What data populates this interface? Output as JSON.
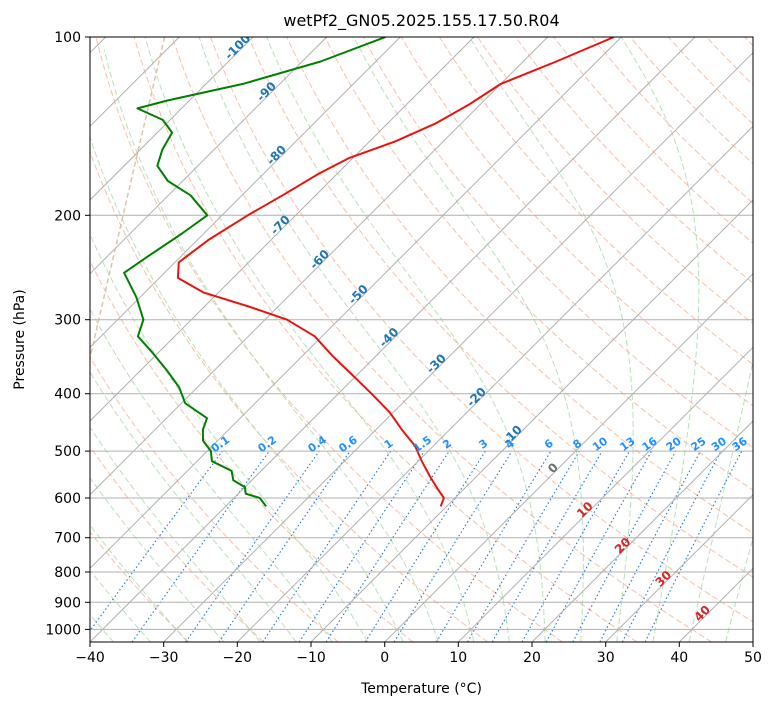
{
  "chart_data": {
    "type": "line",
    "title": "wetPf2_GN05.2025.155.17.50.R04",
    "xlabel": "Temperature (°C)",
    "ylabel": "Pressure (hPa)",
    "xlim": [
      -40,
      50
    ],
    "ylim": [
      1050,
      100
    ],
    "y_scale": "log",
    "skew": true,
    "grid": true,
    "x_ticks": [
      -40,
      -30,
      -20,
      -10,
      0,
      10,
      20,
      30,
      40,
      50
    ],
    "y_ticks": [
      100,
      200,
      300,
      400,
      500,
      600,
      700,
      800,
      900,
      1000
    ],
    "series": [
      {
        "role": "temperature",
        "color": "#e8140f",
        "points": [
          {
            "p": 100,
            "t": -51
          },
          {
            "p": 110,
            "t": -55.5
          },
          {
            "p": 120,
            "t": -60
          },
          {
            "p": 130,
            "t": -61.5
          },
          {
            "p": 140,
            "t": -63.5
          },
          {
            "p": 150,
            "t": -66.5
          },
          {
            "p": 160,
            "t": -70.5
          },
          {
            "p": 170,
            "t": -72.5
          },
          {
            "p": 185,
            "t": -74.5
          },
          {
            "p": 200,
            "t": -76.5
          },
          {
            "p": 220,
            "t": -78.5
          },
          {
            "p": 240,
            "t": -79.5
          },
          {
            "p": 255,
            "t": -77.5
          },
          {
            "p": 270,
            "t": -72
          },
          {
            "p": 285,
            "t": -64
          },
          {
            "p": 300,
            "t": -57
          },
          {
            "p": 320,
            "t": -51
          },
          {
            "p": 345,
            "t": -46
          },
          {
            "p": 370,
            "t": -41
          },
          {
            "p": 400,
            "t": -35.5
          },
          {
            "p": 430,
            "t": -30.5
          },
          {
            "p": 460,
            "t": -26.5
          },
          {
            "p": 490,
            "t": -22.5
          },
          {
            "p": 520,
            "t": -19.5
          },
          {
            "p": 550,
            "t": -16.5
          },
          {
            "p": 580,
            "t": -13.5
          },
          {
            "p": 600,
            "t": -11.5
          },
          {
            "p": 620,
            "t": -10.8
          }
        ]
      },
      {
        "role": "dewpoint",
        "color": "#008000",
        "points": [
          {
            "p": 100,
            "t": -82
          },
          {
            "p": 110,
            "t": -87.5
          },
          {
            "p": 120,
            "t": -95
          },
          {
            "p": 128,
            "t": -103
          },
          {
            "p": 132,
            "t": -106
          },
          {
            "p": 138,
            "t": -101
          },
          {
            "p": 145,
            "t": -98
          },
          {
            "p": 155,
            "t": -97
          },
          {
            "p": 165,
            "t": -95.5
          },
          {
            "p": 175,
            "t": -92
          },
          {
            "p": 185,
            "t": -87
          },
          {
            "p": 200,
            "t": -82
          },
          {
            "p": 215,
            "t": -83
          },
          {
            "p": 235,
            "t": -84.5
          },
          {
            "p": 250,
            "t": -85.5
          },
          {
            "p": 275,
            "t": -80.5
          },
          {
            "p": 300,
            "t": -76.5
          },
          {
            "p": 320,
            "t": -75
          },
          {
            "p": 340,
            "t": -71
          },
          {
            "p": 365,
            "t": -66.5
          },
          {
            "p": 390,
            "t": -62.5
          },
          {
            "p": 415,
            "t": -59.5
          },
          {
            "p": 440,
            "t": -54.5
          },
          {
            "p": 460,
            "t": -53.5
          },
          {
            "p": 480,
            "t": -52
          },
          {
            "p": 500,
            "t": -49.5
          },
          {
            "p": 520,
            "t": -48
          },
          {
            "p": 540,
            "t": -44
          },
          {
            "p": 560,
            "t": -42.5
          },
          {
            "p": 575,
            "t": -40
          },
          {
            "p": 590,
            "t": -39
          },
          {
            "p": 600,
            "t": -36.5
          },
          {
            "p": 620,
            "t": -34.5
          }
        ]
      }
    ],
    "isotherm_labels": [
      "-100",
      "-90",
      "-80",
      "-70",
      "-60",
      "-50",
      "-40",
      "-30",
      "-20",
      "-10",
      "0",
      "10",
      "20",
      "30",
      "40"
    ],
    "mixing_ratio_labels": [
      "0.1",
      "0.2",
      "0.4",
      "0.6",
      "1",
      "1.5",
      "2",
      "3",
      "4",
      "6",
      "8",
      "10",
      "13",
      "16",
      "20",
      "25",
      "30",
      "36"
    ]
  }
}
